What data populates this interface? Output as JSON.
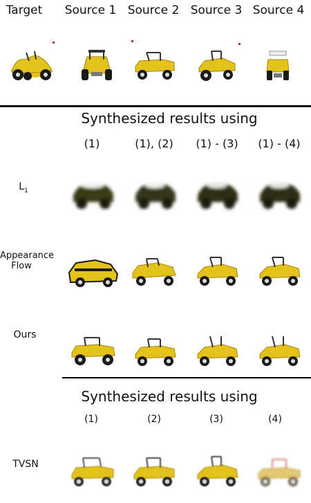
{
  "header": {
    "labels": [
      "Target",
      "Source 1",
      "Source 2",
      "Source 3",
      "Source 4"
    ]
  },
  "section1": {
    "title": "Synthesized results using",
    "columns": [
      "(1)",
      "(1), (2)",
      "(1) - (3)",
      "(1) - (4)"
    ],
    "row_labels": {
      "l1": "L",
      "l1_sub": "1",
      "appearance_line1": "Appearance",
      "appearance_line2": "Flow",
      "ours": "Ours"
    }
  },
  "section2": {
    "title": "Synthesized results using",
    "columns": [
      "(1)",
      "(2)",
      "(3)",
      "(4)"
    ],
    "row_labels": {
      "tvsn": "TVSN"
    }
  },
  "colors": {
    "car_yellow": "#e3c21a",
    "car_shade": "#a9850c",
    "tire": "#1b1b1b",
    "blur_dark": "#2e2e14"
  },
  "icons": [
    "buggy-car-icon",
    "blurry-car-icon"
  ]
}
